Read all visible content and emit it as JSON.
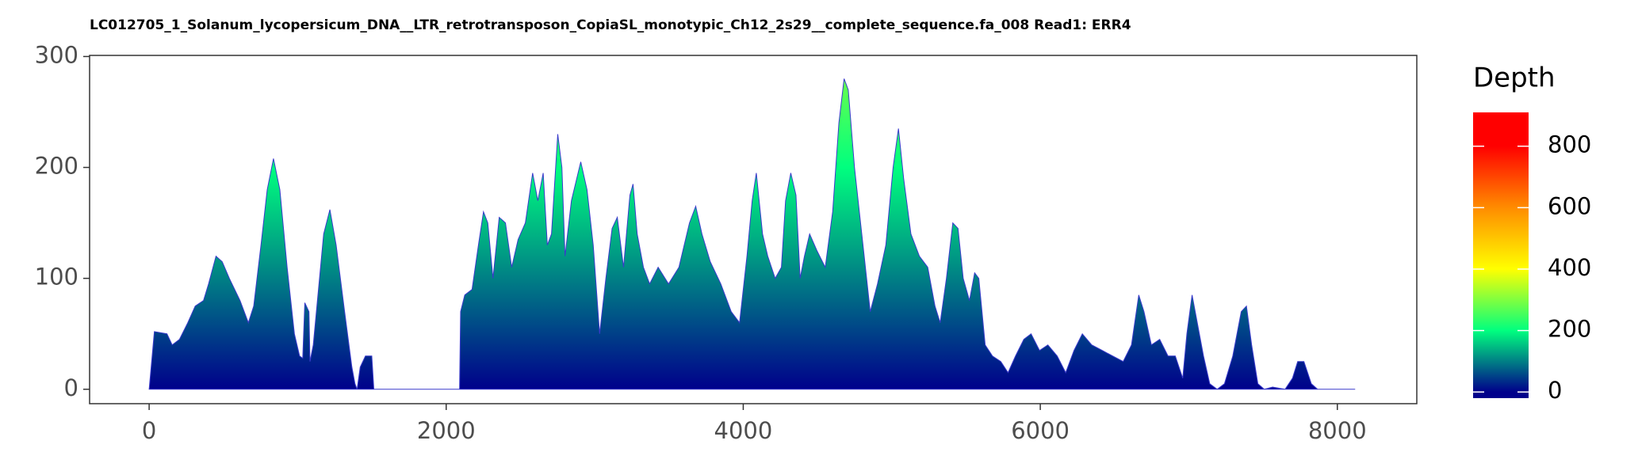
{
  "chart_data": {
    "type": "area",
    "title": "LC012705_1_Solanum_lycopersicum_DNA__LTR_retrotransposon_CopiaSL_monotypic_Ch12_2s29__complete_sequence.fa_008   Read1: ERR4",
    "legend_title": "Depth",
    "x": [
      0,
      35,
      120,
      155,
      204,
      260,
      310,
      366,
      400,
      450,
      492,
      540,
      612,
      668,
      704,
      753,
      795,
      837,
      880,
      929,
      978,
      1013,
      1034,
      1048,
      1076,
      1083,
      1105,
      1140,
      1175,
      1217,
      1259,
      1316,
      1365,
      1386,
      1400,
      1421,
      1456,
      1499,
      1513,
      1541,
      2090,
      2097,
      2125,
      2174,
      2217,
      2251,
      2280,
      2315,
      2357,
      2399,
      2441,
      2484,
      2533,
      2582,
      2617,
      2653,
      2681,
      2709,
      2751,
      2779,
      2800,
      2843,
      2906,
      2948,
      2990,
      3033,
      3075,
      3117,
      3152,
      3194,
      3237,
      3258,
      3286,
      3328,
      3370,
      3427,
      3497,
      3567,
      3638,
      3680,
      3722,
      3778,
      3849,
      3919,
      3975,
      4025,
      4060,
      4088,
      4130,
      4165,
      4215,
      4257,
      4285,
      4320,
      4355,
      4383,
      4412,
      4447,
      4496,
      4552,
      4602,
      4644,
      4679,
      4707,
      4749,
      4798,
      4855,
      4904,
      4960,
      5009,
      5045,
      5080,
      5129,
      5186,
      5242,
      5291,
      5326,
      5368,
      5411,
      5446,
      5481,
      5523,
      5558,
      5586,
      5629,
      5678,
      5734,
      5783,
      5833,
      5889,
      5938,
      5995,
      6051,
      6114,
      6171,
      6227,
      6283,
      6346,
      6417,
      6487,
      6558,
      6614,
      6663,
      6698,
      6748,
      6804,
      6860,
      6909,
      6959,
      6987,
      7022,
      7057,
      7099,
      7141,
      7191,
      7240,
      7296,
      7353,
      7388,
      7423,
      7465,
      7508,
      7564,
      7648,
      7698,
      7733,
      7775,
      7825,
      7867,
      8120
    ],
    "values": [
      0,
      52,
      50,
      40,
      45,
      60,
      75,
      80,
      95,
      120,
      115,
      100,
      80,
      60,
      75,
      130,
      180,
      208,
      180,
      110,
      50,
      30,
      28,
      78,
      70,
      25,
      40,
      90,
      140,
      162,
      130,
      70,
      20,
      5,
      0,
      20,
      30,
      30,
      0,
      0,
      0,
      70,
      85,
      90,
      130,
      160,
      150,
      100,
      155,
      150,
      110,
      135,
      150,
      195,
      170,
      195,
      130,
      140,
      230,
      200,
      120,
      170,
      205,
      180,
      130,
      50,
      100,
      145,
      155,
      110,
      175,
      185,
      140,
      110,
      95,
      110,
      95,
      110,
      150,
      165,
      140,
      115,
      95,
      70,
      60,
      120,
      170,
      195,
      140,
      120,
      100,
      110,
      170,
      195,
      175,
      100,
      120,
      140,
      125,
      110,
      160,
      240,
      280,
      270,
      200,
      140,
      70,
      95,
      130,
      200,
      235,
      190,
      140,
      120,
      110,
      75,
      60,
      100,
      150,
      145,
      100,
      80,
      105,
      100,
      40,
      30,
      25,
      15,
      30,
      45,
      50,
      35,
      40,
      30,
      15,
      35,
      50,
      40,
      35,
      30,
      25,
      40,
      85,
      70,
      40,
      45,
      30,
      30,
      10,
      50,
      85,
      60,
      30,
      5,
      0,
      5,
      30,
      70,
      75,
      40,
      5,
      0,
      2,
      0,
      10,
      25,
      25,
      5,
      0,
      0
    ],
    "xlim": [
      -401,
      8535
    ],
    "ylim": [
      -13,
      301
    ],
    "xticks": [
      0,
      2000,
      4000,
      6000,
      8000
    ],
    "yticks": [
      0,
      100,
      200,
      300
    ],
    "colorbar_lim": [
      -20,
      910
    ],
    "colorbar_ticks": [
      0,
      200,
      400,
      600,
      800
    ],
    "color_stops": [
      {
        "value": 0,
        "color": "#00008b"
      },
      {
        "value": 200,
        "color": "#00ff7f"
      },
      {
        "value": 400,
        "color": "#ffff00"
      },
      {
        "value": 600,
        "color": "#ff8c00"
      },
      {
        "value": 800,
        "color": "#ff0000"
      }
    ]
  }
}
